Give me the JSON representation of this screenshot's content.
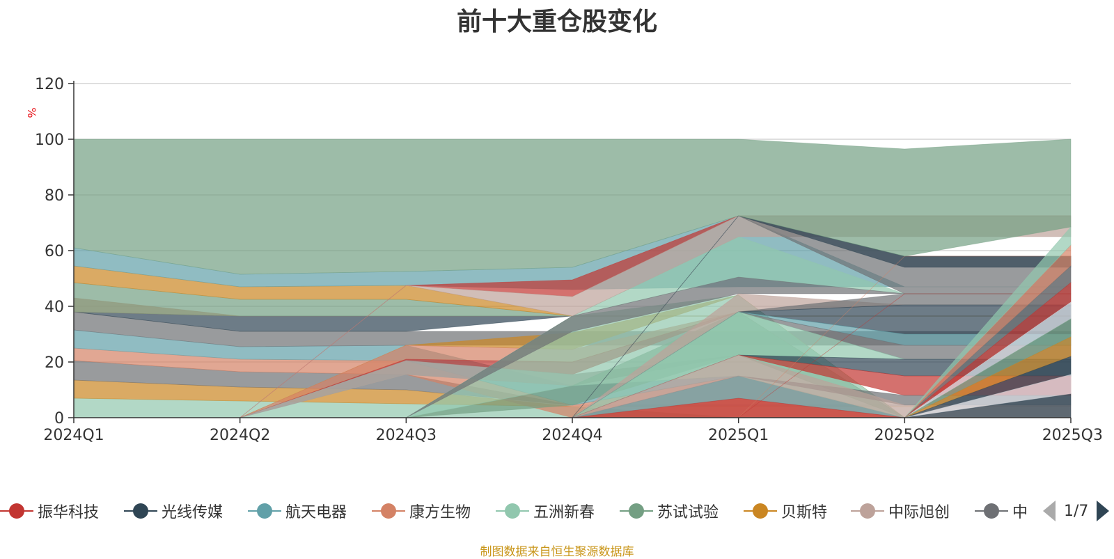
{
  "title": "前十大重仓股变化",
  "footer_note": "制图数据来自恒生聚源数据库",
  "legend_pager": "1/7",
  "colors": {
    "振华科技": "#c23531",
    "光线传媒": "#2f4554",
    "航天电器": "#61a0a8",
    "康方生物": "#d48265",
    "五洲新春": "#91c7ae",
    "苏试试验": "#749f83",
    "贝斯特": "#ca8622",
    "中际旭创": "#bda29a",
    "中": "#6e7074"
  },
  "legend_items": [
    "振华科技",
    "光线传媒",
    "航天电器",
    "康方生物",
    "五洲新春",
    "苏试试验",
    "贝斯特",
    "中际旭创",
    "中"
  ],
  "chart_data": {
    "type": "area",
    "title": "前十大重仓股变化",
    "ylabel": "%",
    "ylim": [
      0,
      120
    ],
    "yticks": [
      "0",
      "20",
      "40",
      "60",
      "80",
      "100",
      "120"
    ],
    "categories": [
      "2024Q1",
      "2024Q2",
      "2024Q3",
      "2024Q4",
      "2025Q1",
      "2025Q2",
      "2025Q3"
    ],
    "grid": true,
    "bands": [
      {
        "color": "#91c7ae",
        "lower": [
          0,
          0,
          0,
          0,
          0,
          0,
          0
        ],
        "upper": [
          7,
          6,
          5,
          4,
          0,
          0,
          0
        ]
      },
      {
        "color": "#ca8622",
        "lower": [
          7,
          6,
          5,
          4,
          4,
          4,
          4
        ],
        "upper": [
          13.5,
          11,
          10,
          4,
          4,
          4,
          4
        ]
      },
      {
        "color": "#6e7074",
        "lower": [
          13.5,
          11,
          10,
          4.5,
          4.5,
          4.5,
          4.5
        ],
        "upper": [
          20.5,
          16.5,
          15.5,
          4.5,
          4.5,
          4.5,
          4.5
        ]
      },
      {
        "color": "#d48265",
        "lower": [
          20.5,
          16.5,
          15.5,
          0,
          0,
          0,
          0
        ],
        "upper": [
          25,
          21,
          20.5,
          4.5,
          15,
          0,
          0
        ]
      },
      {
        "color": "#61a0a8",
        "lower": [
          25,
          21,
          20.5,
          4.5,
          15,
          0,
          0
        ],
        "upper": [
          31.5,
          25.5,
          26,
          11.5,
          15,
          0,
          0
        ]
      },
      {
        "color": "#61a0a8",
        "lower": [
          0,
          0,
          0,
          0,
          7,
          0,
          0
        ],
        "upper": [
          0,
          0,
          0,
          0,
          15,
          0,
          0
        ]
      },
      {
        "color": "#c23531",
        "lower": [
          0,
          0,
          0,
          0,
          0,
          0,
          0
        ],
        "upper": [
          0,
          0,
          0,
          0,
          7,
          0,
          0
        ]
      },
      {
        "color": "#6e7074",
        "lower": [
          31.5,
          25.5,
          26,
          26,
          26,
          26,
          26
        ],
        "upper": [
          38,
          31,
          31,
          31,
          31,
          31,
          31
        ]
      },
      {
        "color": "#2f4554",
        "lower": [
          38,
          31,
          31,
          36.5,
          36.5,
          36.5,
          36.5
        ],
        "upper": [
          38,
          36.5,
          36.5,
          36.5,
          36.5,
          36.5,
          36.5
        ]
      },
      {
        "color": "#d48265",
        "lower": [
          38,
          36.5,
          36.5,
          36.5,
          36.5,
          36.5,
          36.5
        ],
        "upper": [
          43,
          36.5,
          36.5,
          36.5,
          36.5,
          36.5,
          36.5
        ]
      },
      {
        "color": "#749f83",
        "lower": [
          38,
          36.5,
          36.5,
          36.5,
          36.5,
          36.5,
          36.5
        ],
        "upper": [
          48.5,
          42.5,
          42.5,
          36.5,
          36.5,
          36.5,
          36.5
        ]
      },
      {
        "color": "#ca8622",
        "lower": [
          48.5,
          42.5,
          42.5,
          36.5,
          36.5,
          36.5,
          36.5
        ],
        "upper": [
          54.5,
          47,
          47.5,
          36.5,
          36.5,
          36.5,
          36.5
        ]
      },
      {
        "color": "#61a0a8",
        "lower": [
          54.5,
          47,
          47.5,
          46,
          47,
          47,
          47
        ],
        "upper": [
          61,
          51.5,
          52.5,
          54,
          72.5,
          47,
          47
        ]
      },
      {
        "color": "#ca8622",
        "lower": [
          0,
          0,
          26,
          24.5,
          44,
          0,
          0
        ],
        "upper": [
          0,
          0,
          26,
          30.5,
          44,
          0,
          0
        ]
      },
      {
        "color": "#d48265",
        "lower": [
          0,
          0,
          21,
          20,
          38,
          0,
          0
        ],
        "upper": [
          0,
          0,
          26,
          24.5,
          38,
          0,
          0
        ]
      },
      {
        "color": "#c23531",
        "lower": [
          0,
          0,
          20.5,
          15.5,
          38,
          0,
          0
        ],
        "upper": [
          0,
          0,
          21,
          20,
          38,
          0,
          0
        ]
      },
      {
        "color": "#61a0a8",
        "lower": [
          0,
          0,
          15.5,
          11.5,
          22.5,
          0,
          0
        ],
        "upper": [
          0,
          0,
          20.5,
          15.5,
          22.5,
          0,
          0
        ]
      },
      {
        "color": "#bda29a",
        "lower": [
          0,
          0,
          15.5,
          11.5,
          22.5,
          0,
          0
        ],
        "upper": [
          0,
          0,
          20.5,
          15.5,
          22.5,
          0,
          0
        ]
      },
      {
        "color": "#749f83",
        "lower": [
          0,
          0,
          0,
          4.5,
          22.5,
          0,
          0
        ],
        "upper": [
          0,
          0,
          0,
          11.5,
          38,
          0,
          0
        ]
      },
      {
        "color": "#91c7ae",
        "lower": [
          0,
          0,
          0,
          11.5,
          15,
          0,
          0
        ],
        "upper": [
          0,
          0,
          0,
          36.5,
          44,
          0,
          0
        ]
      },
      {
        "color": "#91c7ae",
        "lower": [
          0,
          0,
          0,
          36.5,
          50.5,
          44.5,
          44.5
        ],
        "upper": [
          0,
          0,
          0,
          36.5,
          65,
          44.5,
          44.5
        ]
      },
      {
        "color": "#6e7074",
        "lower": [
          0,
          0,
          0,
          31,
          44.5,
          44.5,
          44.5
        ],
        "upper": [
          0,
          0,
          0,
          36.5,
          50.5,
          44.5,
          44.5
        ]
      },
      {
        "color": "#c23531",
        "lower": [
          0,
          0,
          47.5,
          43.5,
          72.5,
          72.5,
          72.5
        ],
        "upper": [
          0,
          0,
          47.5,
          49.5,
          72.5,
          72.5,
          72.5
        ]
      },
      {
        "color": "#bda29a",
        "lower": [
          0,
          0,
          47.5,
          36.5,
          65,
          65,
          65
        ],
        "upper": [
          0,
          0,
          47.5,
          43.5,
          72.5,
          72.5,
          72.5
        ]
      },
      {
        "color": "#bda29a",
        "lower": [
          0,
          0,
          0,
          0,
          38,
          40.5,
          40.5
        ],
        "upper": [
          0,
          0,
          0,
          0,
          44.5,
          40.5,
          40.5
        ]
      },
      {
        "color": "#6e7074",
        "lower": [
          0,
          0,
          0,
          0,
          72.5,
          44.5,
          44.5
        ],
        "upper": [
          0,
          0,
          0,
          0,
          72.5,
          58,
          58
        ]
      },
      {
        "color": "#2f4554",
        "lower": [
          0,
          0,
          0,
          0,
          72.5,
          54,
          54
        ],
        "upper": [
          0,
          0,
          0,
          0,
          72.5,
          58,
          58
        ]
      },
      {
        "color": "#6e7074",
        "lower": [
          0,
          0,
          0,
          0,
          38,
          40.5,
          40.5
        ],
        "upper": [
          0,
          0,
          0,
          0,
          38,
          44.5,
          44.5
        ]
      },
      {
        "color": "#2f4554",
        "lower": [
          0,
          0,
          0,
          0,
          38,
          30,
          30
        ],
        "upper": [
          0,
          0,
          0,
          0,
          38,
          40.5,
          40.5
        ]
      },
      {
        "color": "#61a0a8",
        "lower": [
          0,
          0,
          0,
          0,
          38,
          26,
          26
        ],
        "upper": [
          0,
          0,
          0,
          0,
          38,
          30,
          30
        ]
      },
      {
        "color": "#6e7074",
        "lower": [
          0,
          0,
          0,
          0,
          38,
          21,
          21
        ],
        "upper": [
          0,
          0,
          0,
          0,
          38,
          26,
          26
        ]
      },
      {
        "color": "#91c7ae",
        "lower": [
          0,
          0,
          0,
          0,
          22.5,
          21,
          21
        ],
        "upper": [
          0,
          0,
          0,
          0,
          38,
          21,
          21
        ]
      },
      {
        "color": "#2f4554",
        "lower": [
          0,
          0,
          0,
          0,
          22.5,
          15,
          15
        ],
        "upper": [
          0,
          0,
          0,
          0,
          22.5,
          21,
          21
        ]
      },
      {
        "color": "#c23531",
        "lower": [
          0,
          0,
          0,
          0,
          22.5,
          8,
          8
        ],
        "upper": [
          0,
          0,
          0,
          0,
          22.5,
          15,
          15
        ]
      },
      {
        "color": "#6e7074",
        "lower": [
          0,
          0,
          0,
          0,
          15,
          4.5,
          4.5
        ],
        "upper": [
          0,
          0,
          0,
          0,
          15,
          8,
          8
        ]
      },
      {
        "color": "#bda29a",
        "lower": [
          0,
          0,
          0,
          0,
          15,
          0,
          0
        ],
        "upper": [
          0,
          0,
          0,
          0,
          22.5,
          4.5,
          4.5
        ]
      },
      {
        "color": "#c23531",
        "lower": [
          0,
          0,
          0,
          0,
          0,
          44.5,
          44.5
        ],
        "upper": [
          0,
          0,
          0,
          0,
          0,
          44.5,
          44.5
        ]
      },
      {
        "color": "#d48265",
        "lower": [
          0,
          0,
          0,
          0,
          0,
          58,
          58
        ],
        "upper": [
          0,
          0,
          0,
          0,
          0,
          58,
          58
        ]
      },
      {
        "color": "#d48265",
        "lower": [
          0,
          0,
          0,
          0,
          0,
          0,
          54.5
        ],
        "upper": [
          0,
          0,
          0,
          0,
          0,
          0,
          62
        ]
      },
      {
        "color": "#91c7ae",
        "lower": [
          0,
          0,
          0,
          0,
          0,
          0,
          62
        ],
        "upper": [
          0,
          0,
          0,
          0,
          0,
          0,
          68.5
        ]
      },
      {
        "color": "#6e7074",
        "lower": [
          0,
          0,
          0,
          0,
          0,
          0,
          48.5
        ],
        "upper": [
          0,
          0,
          0,
          0,
          0,
          0,
          54.5
        ]
      },
      {
        "color": "#c23531",
        "lower": [
          0,
          0,
          0,
          0,
          0,
          0,
          41.5
        ],
        "upper": [
          0,
          0,
          0,
          0,
          0,
          0,
          48.5
        ]
      },
      {
        "color": "#d7dbe2",
        "lower": [
          0,
          0,
          0,
          0,
          0,
          0,
          35.5
        ],
        "upper": [
          0,
          0,
          0,
          0,
          0,
          0,
          41.5
        ]
      },
      {
        "color": "#749f83",
        "lower": [
          0,
          0,
          0,
          0,
          0,
          0,
          29
        ],
        "upper": [
          0,
          0,
          0,
          0,
          0,
          0,
          35.5
        ]
      },
      {
        "color": "#ca8622",
        "lower": [
          0,
          0,
          0,
          0,
          0,
          0,
          22
        ],
        "upper": [
          0,
          0,
          0,
          0,
          0,
          0,
          29
        ]
      },
      {
        "color": "#2f4554",
        "lower": [
          0,
          0,
          0,
          0,
          0,
          0,
          15.5
        ],
        "upper": [
          0,
          0,
          0,
          0,
          0,
          0,
          22
        ]
      },
      {
        "color": "#d7dbe2",
        "lower": [
          0,
          0,
          0,
          0,
          0,
          0,
          8.5
        ],
        "upper": [
          0,
          0,
          0,
          0,
          0,
          0,
          15.5
        ]
      },
      {
        "color": "#2f4554",
        "lower": [
          0,
          0,
          0,
          0,
          0,
          0,
          0
        ],
        "upper": [
          0,
          0,
          0,
          0,
          0,
          0,
          8.5
        ]
      },
      {
        "color": "#749f83",
        "lower": [
          61,
          51.5,
          52.5,
          54,
          72.5,
          58,
          68.5
        ],
        "upper": [
          100,
          100,
          100,
          100,
          100,
          96.5,
          100
        ]
      }
    ]
  }
}
